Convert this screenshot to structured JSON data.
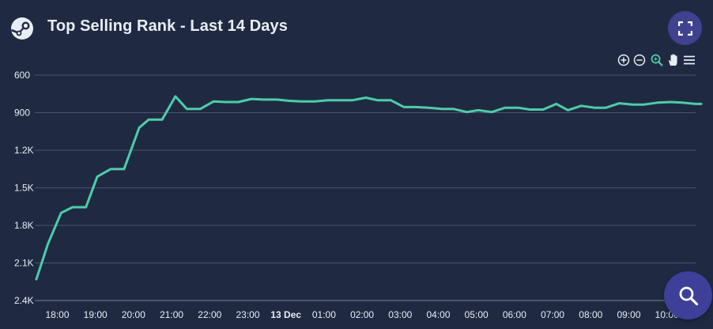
{
  "header": {
    "title": "Top Selling Rank - Last 14 Days"
  },
  "icons": {
    "logo": "steam-logo-icon",
    "fullscreen": "expand-icon",
    "zoom_in": "zoom-in-icon",
    "zoom_out": "zoom-out-icon",
    "zoom_selection": "magnifier-icon",
    "pan": "hand-icon",
    "menu": "hamburger-menu-icon",
    "search": "search-icon"
  },
  "colors": {
    "background": "#1f2a42",
    "line": "#4ecca9",
    "grid": "#4a5468",
    "fab": "#3d3f98",
    "fullscreen_button": "#40418f",
    "zoom_selection_active": "#4ecca9"
  },
  "chart_data": {
    "type": "line",
    "y_reversed": true,
    "ylim": [
      600,
      2400
    ],
    "y_ticks": [
      {
        "value": 600,
        "label": "600"
      },
      {
        "value": 900,
        "label": "900"
      },
      {
        "value": 1200,
        "label": "1.2K"
      },
      {
        "value": 1500,
        "label": "1.5K"
      },
      {
        "value": 1800,
        "label": "1.8K"
      },
      {
        "value": 2100,
        "label": "2.1K"
      },
      {
        "value": 2400,
        "label": "2.4K"
      }
    ],
    "x_ticks": [
      {
        "hour": 18,
        "label": "18:00",
        "bold": false
      },
      {
        "hour": 19,
        "label": "19:00",
        "bold": false
      },
      {
        "hour": 20,
        "label": "20:00",
        "bold": false
      },
      {
        "hour": 21,
        "label": "21:00",
        "bold": false
      },
      {
        "hour": 22,
        "label": "22:00",
        "bold": false
      },
      {
        "hour": 23,
        "label": "23:00",
        "bold": false
      },
      {
        "hour": 24,
        "label": "13 Dec",
        "bold": true
      },
      {
        "hour": 25,
        "label": "01:00",
        "bold": false
      },
      {
        "hour": 26,
        "label": "02:00",
        "bold": false
      },
      {
        "hour": 27,
        "label": "03:00",
        "bold": false
      },
      {
        "hour": 28,
        "label": "04:00",
        "bold": false
      },
      {
        "hour": 29,
        "label": "05:00",
        "bold": false
      },
      {
        "hour": 30,
        "label": "06:00",
        "bold": false
      },
      {
        "hour": 31,
        "label": "07:00",
        "bold": false
      },
      {
        "hour": 32,
        "label": "08:00",
        "bold": false
      },
      {
        "hour": 33,
        "label": "09:00",
        "bold": false
      },
      {
        "hour": 34,
        "label": "10:00",
        "bold": false
      }
    ],
    "x_range": [
      17.45,
      34.9
    ],
    "series": [
      {
        "values": [
          [
            17.45,
            2230
          ],
          [
            17.75,
            1950
          ],
          [
            18.1,
            1700
          ],
          [
            18.4,
            1655
          ],
          [
            18.75,
            1655
          ],
          [
            19.05,
            1410
          ],
          [
            19.4,
            1350
          ],
          [
            19.75,
            1350
          ],
          [
            20.15,
            1020
          ],
          [
            20.4,
            955
          ],
          [
            20.75,
            955
          ],
          [
            21.1,
            770
          ],
          [
            21.4,
            870
          ],
          [
            21.75,
            870
          ],
          [
            22.1,
            810
          ],
          [
            22.4,
            815
          ],
          [
            22.75,
            815
          ],
          [
            23.1,
            790
          ],
          [
            23.4,
            795
          ],
          [
            23.75,
            795
          ],
          [
            24.1,
            805
          ],
          [
            24.4,
            810
          ],
          [
            24.75,
            810
          ],
          [
            25.1,
            800
          ],
          [
            25.4,
            800
          ],
          [
            25.75,
            800
          ],
          [
            26.1,
            780
          ],
          [
            26.4,
            800
          ],
          [
            26.75,
            800
          ],
          [
            27.1,
            855
          ],
          [
            27.4,
            855
          ],
          [
            27.75,
            860
          ],
          [
            28.1,
            870
          ],
          [
            28.4,
            870
          ],
          [
            28.75,
            895
          ],
          [
            29.05,
            880
          ],
          [
            29.4,
            895
          ],
          [
            29.75,
            860
          ],
          [
            30.1,
            860
          ],
          [
            30.4,
            875
          ],
          [
            30.75,
            875
          ],
          [
            31.1,
            830
          ],
          [
            31.4,
            880
          ],
          [
            31.75,
            845
          ],
          [
            32.1,
            860
          ],
          [
            32.4,
            860
          ],
          [
            32.75,
            825
          ],
          [
            33.1,
            835
          ],
          [
            33.4,
            835
          ],
          [
            33.75,
            820
          ],
          [
            34.1,
            815
          ],
          [
            34.4,
            820
          ],
          [
            34.75,
            830
          ],
          [
            34.9,
            830
          ]
        ]
      }
    ]
  }
}
